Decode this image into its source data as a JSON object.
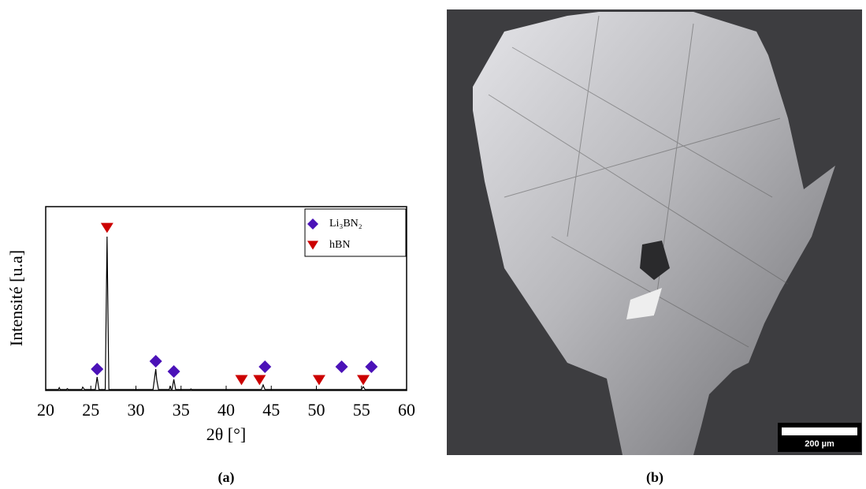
{
  "chart_data": {
    "type": "line",
    "ylabel": "Intensité [u.a]",
    "xlabel": "2θ [°]",
    "xlim": [
      20,
      60
    ],
    "xticks": [
      20,
      25,
      30,
      35,
      40,
      45,
      50,
      55,
      60
    ],
    "ylim": [
      0,
      100
    ],
    "color": "#000000",
    "x": [
      20,
      21.4,
      21.5,
      21.6,
      22.3,
      22.4,
      22.5,
      24,
      24.1,
      24.3,
      25.5,
      25.7,
      25.9,
      26.6,
      26.8,
      27.0,
      31.9,
      32.1,
      32.2,
      32.3,
      32.5,
      33.7,
      33.8,
      33.9,
      34.0,
      34.2,
      34.4,
      36,
      36.1,
      36.2,
      43.9,
      44.1,
      44.3,
      55.0,
      55.2,
      55.4,
      60
    ],
    "values": [
      0.5,
      0.5,
      1.5,
      0.5,
      0.5,
      1,
      0.5,
      0.5,
      1.8,
      0.5,
      0.5,
      7.3,
      0.5,
      0.5,
      83.7,
      0.5,
      0.5,
      8,
      11.6,
      6,
      0.5,
      0.5,
      2.5,
      0.5,
      0.5,
      6,
      0.5,
      0.5,
      0.8,
      0.5,
      0.5,
      3,
      0.5,
      0.5,
      2,
      0.5,
      0.5
    ],
    "series": [
      {
        "name": "Li₃BN₂",
        "color": "#4b12b8",
        "marker": "diamond",
        "x": [
          25.7,
          32.2,
          34.2,
          44.3,
          52.8,
          56.1
        ],
        "values": [
          11.6,
          15.9,
          10.3,
          12.9,
          12.9,
          12.9
        ]
      },
      {
        "name": "hBN",
        "color": "#cc0000",
        "marker": "triangle-down",
        "x": [
          26.8,
          41.7,
          43.7,
          50.3,
          55.2
        ],
        "values": [
          88.4,
          5.6,
          5.6,
          5.6,
          5.6
        ]
      }
    ]
  },
  "micrograph": {
    "scale_bar": "200 µm"
  },
  "captions": [
    "(a)",
    "(b)"
  ]
}
